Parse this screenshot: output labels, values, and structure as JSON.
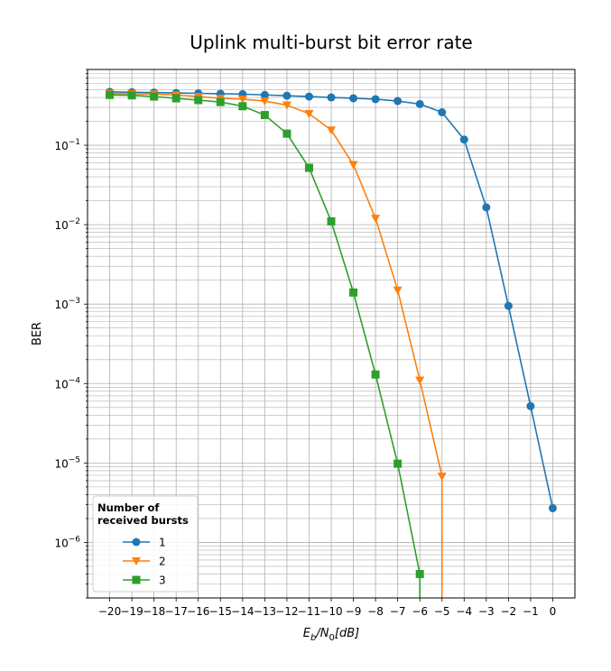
{
  "chart_data": {
    "type": "line",
    "title": "Uplink multi-burst bit error rate",
    "xlabel": "E_b/N_0[dB]",
    "ylabel": "BER",
    "yscale": "log",
    "grid": true,
    "xlim": [
      -21,
      1
    ],
    "ylim": [
      2e-07,
      0.9
    ],
    "xticks": [
      -20,
      -19,
      -18,
      -17,
      -16,
      -15,
      -14,
      -13,
      -12,
      -11,
      -10,
      -9,
      -8,
      -7,
      -6,
      -5,
      -4,
      -3,
      -2,
      -1,
      0
    ],
    "x_tick_labels": [
      "−20",
      "−19",
      "−18",
      "−17",
      "−16",
      "−15",
      "−14",
      "−13",
      "−12",
      "−11",
      "−10",
      "−9",
      "−8",
      "−7",
      "−6",
      "−5",
      "−4",
      "−3",
      "−2",
      "−1",
      "0"
    ],
    "yticks": [
      {
        "value": 1e-06,
        "base": "10",
        "exp": "−6"
      },
      {
        "value": 1e-05,
        "base": "10",
        "exp": "−5"
      },
      {
        "value": 0.0001,
        "base": "10",
        "exp": "−4"
      },
      {
        "value": 0.001,
        "base": "10",
        "exp": "−3"
      },
      {
        "value": 0.01,
        "base": "10",
        "exp": "−2"
      },
      {
        "value": 0.1,
        "base": "10",
        "exp": "−1"
      }
    ],
    "legend": {
      "title_lines": [
        "Number of",
        "received bursts"
      ],
      "placement": "lower-left"
    },
    "series": [
      {
        "name": "1",
        "color": "#1f77b4",
        "marker": "circle",
        "x": [
          -20,
          -19,
          -18,
          -17,
          -16,
          -15,
          -14,
          -13,
          -12,
          -11,
          -10,
          -9,
          -8,
          -7,
          -6,
          -5,
          -4,
          -3,
          -2,
          -1,
          0
        ],
        "y": [
          0.47,
          0.465,
          0.46,
          0.455,
          0.45,
          0.445,
          0.44,
          0.43,
          0.42,
          0.41,
          0.4,
          0.39,
          0.38,
          0.36,
          0.33,
          0.26,
          0.118,
          0.0165,
          0.00095,
          5.2e-05,
          2.7e-06
        ]
      },
      {
        "name": "2",
        "color": "#ff7f0e",
        "marker": "triangle-down",
        "x": [
          -20,
          -19,
          -18,
          -17,
          -16,
          -15,
          -14,
          -13,
          -12,
          -11,
          -10,
          -9,
          -8,
          -7,
          -6,
          -5,
          -5
        ],
        "y": [
          0.45,
          0.445,
          0.44,
          0.43,
          0.41,
          0.39,
          0.38,
          0.36,
          0.32,
          0.25,
          0.155,
          0.057,
          0.012,
          0.0015,
          0.00011,
          6.8e-06,
          1e-07
        ]
      },
      {
        "name": "3",
        "color": "#2ca02c",
        "marker": "square",
        "x": [
          -20,
          -19,
          -18,
          -17,
          -16,
          -15,
          -14,
          -13,
          -12,
          -11,
          -10,
          -9,
          -8,
          -7,
          -6,
          -6
        ],
        "y": [
          0.43,
          0.425,
          0.41,
          0.39,
          0.37,
          0.35,
          0.31,
          0.24,
          0.14,
          0.052,
          0.011,
          0.0014,
          0.00013,
          9.8e-06,
          4e-07,
          1e-07
        ]
      }
    ]
  }
}
